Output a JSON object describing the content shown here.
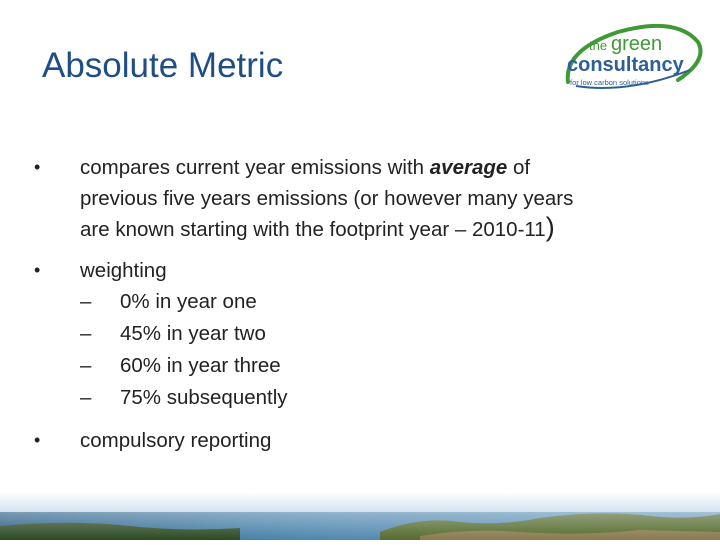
{
  "slide": {
    "title": "Absolute Metric",
    "logo": {
      "line1": "the",
      "line2": "green",
      "line3": "consultancy",
      "tagline": "for low carbon solutions"
    },
    "bullets": [
      {
        "symbol": "•",
        "line1_before": "compares current year emissions with ",
        "line1_emphasis": "average",
        "line1_after": " of",
        "line2": "previous five years emissions (or however many years",
        "line3": "are known starting with the footprint year – 2010-11",
        "line3_close": ")"
      },
      {
        "symbol": "•",
        "text": "weighting",
        "sub_items": [
          {
            "dash": "–",
            "text": "0% in year one",
            "value": 0
          },
          {
            "dash": "–",
            "text": "45% in year two",
            "value": 45
          },
          {
            "dash": "–",
            "text": "60% in year three",
            "value": 60
          },
          {
            "dash": "–",
            "text": "75% subsequently",
            "value": 75
          }
        ]
      },
      {
        "symbol": "•",
        "text": "compulsory reporting"
      }
    ],
    "colors": {
      "title": "#1f4e87",
      "logo_green": "#3f9a35",
      "logo_blue": "#2e5f96",
      "emphasis": "#222222"
    }
  }
}
